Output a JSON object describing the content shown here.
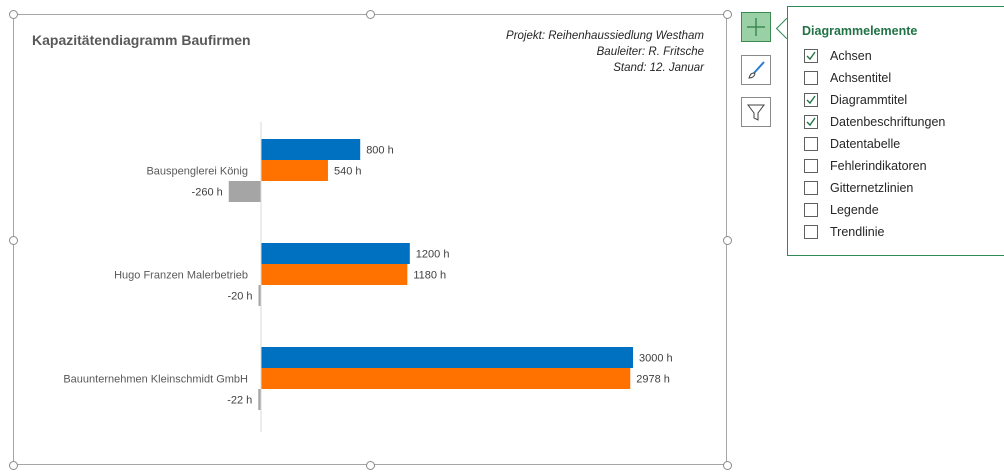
{
  "chart_data": {
    "type": "bar",
    "orientation": "horizontal",
    "title": "Kapazitätendiagramm Baufirmen",
    "categories": [
      "Bauspenglerei König",
      "Hugo Franzen Malerbetrieb",
      "Bauunternehmen Kleinschmidt GmbH"
    ],
    "series": [
      {
        "values": [
          800,
          1200,
          3000
        ],
        "labels": [
          "800 h",
          "1200 h",
          "3000 h"
        ],
        "color": "#0070c0"
      },
      {
        "values": [
          540,
          1180,
          2978
        ],
        "labels": [
          "540 h",
          "1180 h",
          "2978 h"
        ],
        "color": "#ff7200"
      },
      {
        "values": [
          -260,
          -20,
          -22
        ],
        "labels": [
          "-260 h",
          "-20 h",
          "-22 h"
        ],
        "color": "#a5a5a5"
      }
    ],
    "xlim": [
      -2100,
      3000
    ],
    "grid": false,
    "legend": false
  },
  "info": {
    "project": "Projekt: Reihenhaussiedlung Westham",
    "manager": "Bauleiter: R. Fritsche",
    "date": "Stand: 12. Januar"
  },
  "panel": {
    "title": "Diagrammelemente",
    "items": [
      {
        "label": "Achsen",
        "checked": true
      },
      {
        "label": "Achsentitel",
        "checked": false
      },
      {
        "label": "Diagrammtitel",
        "checked": true
      },
      {
        "label": "Datenbeschriftungen",
        "checked": true
      },
      {
        "label": "Datentabelle",
        "checked": false
      },
      {
        "label": "Fehlerindikatoren",
        "checked": false
      },
      {
        "label": "Gitternetzlinien",
        "checked": false
      },
      {
        "label": "Legende",
        "checked": false
      },
      {
        "label": "Trendlinie",
        "checked": false
      }
    ]
  },
  "colors": {
    "accent": "#217346",
    "check": "#217346"
  },
  "icons": {
    "elements": "plus-icon",
    "styles": "brush-icon",
    "filter": "funnel-icon"
  }
}
